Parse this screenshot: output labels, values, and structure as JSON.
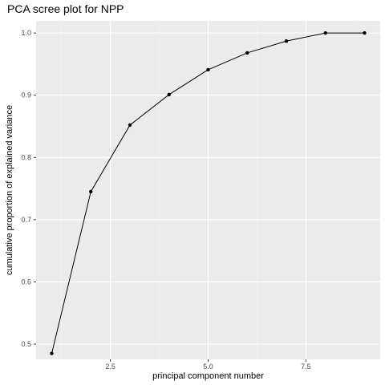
{
  "chart_data": {
    "type": "line",
    "title": "PCA scree plot for NPP",
    "xlabel": "principal component number",
    "ylabel": "cumulative proportion of explained variance",
    "x": [
      1,
      2,
      3,
      4,
      5,
      6,
      7,
      8,
      9
    ],
    "series": [
      {
        "values": [
          0.485,
          0.745,
          0.852,
          0.901,
          0.941,
          0.968,
          0.987,
          1.0,
          1.0
        ]
      }
    ],
    "xlim": [
      0.6,
      9.4
    ],
    "ylim": [
      0.4755,
      1.0195
    ],
    "x_ticks": [
      2.5,
      5.0,
      7.5
    ],
    "x_tick_labels": [
      "2.5",
      "5.0",
      "7.5"
    ],
    "y_ticks": [
      0.5,
      0.6,
      0.7,
      0.8,
      0.9,
      1.0
    ],
    "y_tick_labels": [
      "0.5",
      "0.6",
      "0.7",
      "0.8",
      "0.9",
      "1.0"
    ],
    "grid": true,
    "legend": "none",
    "colors": {
      "panel_background": "#ebebeb",
      "grid_major": "#ffffff",
      "grid_minor": "#f3f3f3",
      "line": "#000000",
      "point": "#000000",
      "tick_label": "#4d4d4d",
      "tick_mark": "#333333"
    }
  }
}
